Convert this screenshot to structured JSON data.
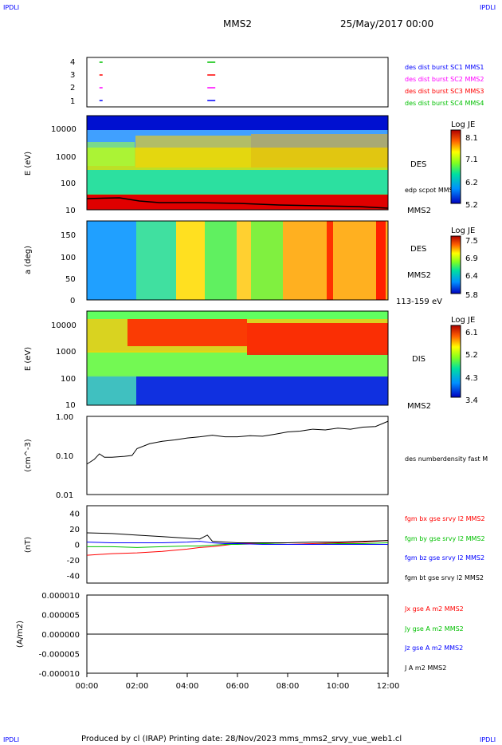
{
  "corner_label": "IPDLI",
  "header": {
    "spacecraft": "MMS2",
    "datetime": "25/May/2017 00:00"
  },
  "footer": "Produced by cl (IRAP)   Printing date: 28/Nov/2023   mms_mms2_srvy_vue_web1.cl",
  "colors": {
    "red": "#ff0000",
    "green": "#00c000",
    "blue": "#0000ff",
    "magenta": "#ff00ff",
    "black": "#000000"
  },
  "chart_data": [
    {
      "type": "scatter",
      "name": "burst availability",
      "y_ticks": [
        "1",
        "2",
        "3",
        "4"
      ],
      "legend": [
        {
          "label": "des dist burst SC1 MMS1",
          "color": "#0000ff"
        },
        {
          "label": "des dist burst SC2 MMS2",
          "color": "#ff00ff"
        },
        {
          "label": "des dist burst SC3 MMS3",
          "color": "#ff0000"
        },
        {
          "label": "des dist burst SC4 MMS4",
          "color": "#00c000"
        }
      ],
      "marks": [
        {
          "sc": 4,
          "t_hours": [
            0.5,
            4.8
          ],
          "color": "#00c000"
        },
        {
          "sc": 3,
          "t_hours": [
            0.5,
            4.8
          ],
          "color": "#ff0000"
        },
        {
          "sc": 2,
          "t_hours": [
            0.5,
            4.8
          ],
          "color": "#ff00ff"
        },
        {
          "sc": 1,
          "t_hours": [
            0.5,
            4.8
          ],
          "color": "#0000ff"
        }
      ]
    },
    {
      "type": "heatmap",
      "ylabel": "E (eV)",
      "y_ticks": [
        "10",
        "100",
        "1000",
        "10000"
      ],
      "right_labels": [
        "DES",
        "edp scpot MMS2",
        "MMS2"
      ],
      "colorbar": {
        "title": "Log JE",
        "ticks": [
          "8.1",
          "7.1",
          "6.2",
          "5.2"
        ]
      }
    },
    {
      "type": "heatmap",
      "ylabel": "a (deg)",
      "y_ticks": [
        "0",
        "50",
        "100",
        "150"
      ],
      "right_labels": [
        "DES",
        "MMS2",
        "113-159 eV"
      ],
      "colorbar": {
        "title": "Log JE",
        "ticks": [
          "7.5",
          "6.9",
          "6.4",
          "5.8"
        ]
      }
    },
    {
      "type": "heatmap",
      "ylabel": "E (eV)",
      "y_ticks": [
        "10",
        "100",
        "1000",
        "10000"
      ],
      "right_labels": [
        "DIS",
        "MMS2"
      ],
      "colorbar": {
        "title": "Log JE",
        "ticks": [
          "6.1",
          "5.2",
          "4.3",
          "3.4"
        ]
      }
    },
    {
      "type": "line",
      "ylabel": "(cm^-3)",
      "y_ticks": [
        "0.01",
        "0.10",
        "1.00"
      ],
      "yscale": "log",
      "ylim": [
        0.01,
        1.0
      ],
      "series": [
        {
          "name": "des numberdensity fast M",
          "color": "#000000",
          "x": [
            0.0,
            0.3,
            0.5,
            0.7,
            1.0,
            1.5,
            1.8,
            2.0,
            2.5,
            3.0,
            3.5,
            4.0,
            4.5,
            5.0,
            5.5,
            6.0,
            6.5,
            7.0,
            7.5,
            8.0,
            8.5,
            9.0,
            9.5,
            10.0,
            10.5,
            11.0,
            11.5,
            12.0
          ],
          "y": [
            0.06,
            0.08,
            0.11,
            0.09,
            0.09,
            0.095,
            0.1,
            0.15,
            0.2,
            0.23,
            0.25,
            0.28,
            0.3,
            0.33,
            0.3,
            0.3,
            0.32,
            0.31,
            0.35,
            0.4,
            0.42,
            0.47,
            0.45,
            0.5,
            0.47,
            0.53,
            0.55,
            0.75
          ]
        }
      ]
    },
    {
      "type": "line",
      "ylabel": "(nT)",
      "y_ticks": [
        "-40",
        "-20",
        "0",
        "20",
        "40"
      ],
      "ylim": [
        -50,
        50
      ],
      "series": [
        {
          "name": "fgm bx gse srvy l2 MMS2",
          "color": "#ff0000",
          "x": [
            0,
            1,
            2,
            3,
            4,
            4.5,
            5,
            5.5,
            6,
            7,
            8,
            9,
            10,
            11,
            12
          ],
          "y": [
            -14,
            -12,
            -11,
            -9,
            -6,
            -4,
            -3,
            -1,
            1,
            1,
            0,
            1,
            2,
            3,
            5
          ]
        },
        {
          "name": "fgm by gse srvy l2 MMS2",
          "color": "#00c000",
          "x": [
            0,
            1,
            2,
            3,
            4,
            4.5,
            5,
            5.5,
            6,
            7,
            8,
            9,
            10,
            11,
            12
          ],
          "y": [
            -3,
            -3,
            -4,
            -3,
            -2,
            -2,
            -1,
            0,
            0,
            1,
            0,
            0,
            1,
            1,
            2
          ]
        },
        {
          "name": "fgm bz gse srvy l2 MMS2",
          "color": "#0000ff",
          "x": [
            0,
            1,
            2,
            3,
            4,
            4.5,
            5,
            5.5,
            6,
            7,
            8,
            9,
            10,
            11,
            12
          ],
          "y": [
            3,
            2,
            2,
            2,
            3,
            4,
            2,
            1,
            1,
            0,
            0,
            0,
            0,
            0,
            0
          ]
        },
        {
          "name": "fgm bt gse srvy l2 MMS2",
          "color": "#000000",
          "x": [
            0,
            1,
            2,
            3,
            4,
            4.5,
            4.8,
            5,
            5.5,
            6,
            7,
            8,
            9,
            10,
            11,
            12
          ],
          "y": [
            15,
            14,
            12,
            10,
            8,
            7,
            12,
            4,
            3,
            2,
            2,
            2,
            3,
            3,
            4,
            5
          ]
        }
      ]
    },
    {
      "type": "line",
      "ylabel": "(A/m2)",
      "y_ticks": [
        "-0.000010",
        "-0.000005",
        "0.000000",
        "0.000005",
        "0.000010"
      ],
      "ylim": [
        -1e-05,
        1e-05
      ],
      "series": [
        {
          "name": "Jx gse A m2 MMS2",
          "color": "#ff0000",
          "x": [],
          "y": []
        },
        {
          "name": "Jy gse A m2 MMS2",
          "color": "#00c000",
          "x": [],
          "y": []
        },
        {
          "name": "Jz gse A m2 MMS2",
          "color": "#0000ff",
          "x": [],
          "y": []
        },
        {
          "name": "J A m2 MMS2",
          "color": "#000000",
          "x": [
            0,
            12
          ],
          "y": [
            0,
            0
          ]
        }
      ]
    }
  ],
  "x_axis": {
    "ticks": [
      "00:00",
      "02:00",
      "04:00",
      "06:00",
      "08:00",
      "10:00",
      "12:00"
    ],
    "range_hours": [
      0,
      12
    ]
  }
}
